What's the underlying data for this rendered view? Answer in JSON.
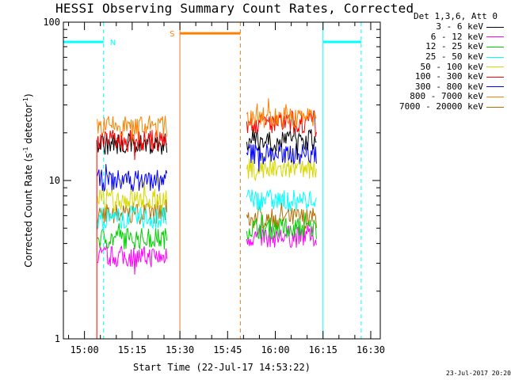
{
  "chart_data": {
    "type": "line",
    "title": "HESSI Observing Summary Count Rates, Corrected",
    "xlabel": "Start Time (22-Jul-17 14:53:22)",
    "ylabel_main": "Corrected Count Rate (s",
    "ylabel_sup1": "-1",
    "ylabel_mid": " detector",
    "ylabel_sup2": "-1",
    "ylabel_end": ")",
    "yscale": "log",
    "ylim": [
      1,
      100
    ],
    "xlim": [
      "14:53:22",
      "16:33:00"
    ],
    "y_tick_labels": [
      "1",
      "10",
      "100"
    ],
    "x_tick_labels": [
      "15:00",
      "15:15",
      "15:30",
      "15:45",
      "16:00",
      "16:15",
      "16:30"
    ],
    "legend_title": "Det 1,3,6, Att 0",
    "series": [
      {
        "name": "3 - 6 keV",
        "color": "#000000",
        "level1": 17.0,
        "level2": 18.0
      },
      {
        "name": "6 - 12 keV",
        "color": "#ff00ff",
        "level1": 3.3,
        "level2": 4.4
      },
      {
        "name": "12 - 25 keV",
        "color": "#00d000",
        "level1": 4.3,
        "level2": 5.0
      },
      {
        "name": "25 - 50 keV",
        "color": "#00ffff",
        "level1": 5.8,
        "level2": 7.5
      },
      {
        "name": "50 - 100 keV",
        "color": "#d8d800",
        "level1": 7.6,
        "level2": 11.8
      },
      {
        "name": "100 - 300 keV",
        "color": "#ff0000",
        "level1": 17.8,
        "level2": 23.0
      },
      {
        "name": "300 - 800 keV",
        "color": "#0000ff",
        "level1": 10.0,
        "level2": 14.8
      },
      {
        "name": "800 - 7000 keV",
        "color": "#ff8000",
        "level1": 22.0,
        "level2": 25.0
      },
      {
        "name": "7000 - 20000 keV",
        "color": "#b07000",
        "level1": 6.2,
        "level2": 5.8
      }
    ],
    "observation_intervals": [
      [
        "15:04",
        "15:26"
      ],
      [
        "15:51",
        "16:13"
      ]
    ],
    "night_bars": [
      {
        "label": "N",
        "start": "14:53:22",
        "end": "15:06:00",
        "y": 75,
        "color": "#00ffff"
      },
      {
        "label": "",
        "start": "16:15:00",
        "end": "16:27:00",
        "y": 75,
        "color": "#00ffff"
      }
    ],
    "saa_bars": [
      {
        "label": "S",
        "start": "15:30:00",
        "end": "15:49:00",
        "y": 85,
        "color": "#ff8000"
      }
    ],
    "night_lines_solid": [
      "16:15:00"
    ],
    "night_lines_dashed": [
      "15:06:00",
      "16:27:00"
    ],
    "saa_line_solid": [
      "15:30:00"
    ],
    "saa_line_dashed": [
      "15:49:00"
    ]
  },
  "footer": {
    "timestamp": "23-Jul-2017 20:20"
  }
}
